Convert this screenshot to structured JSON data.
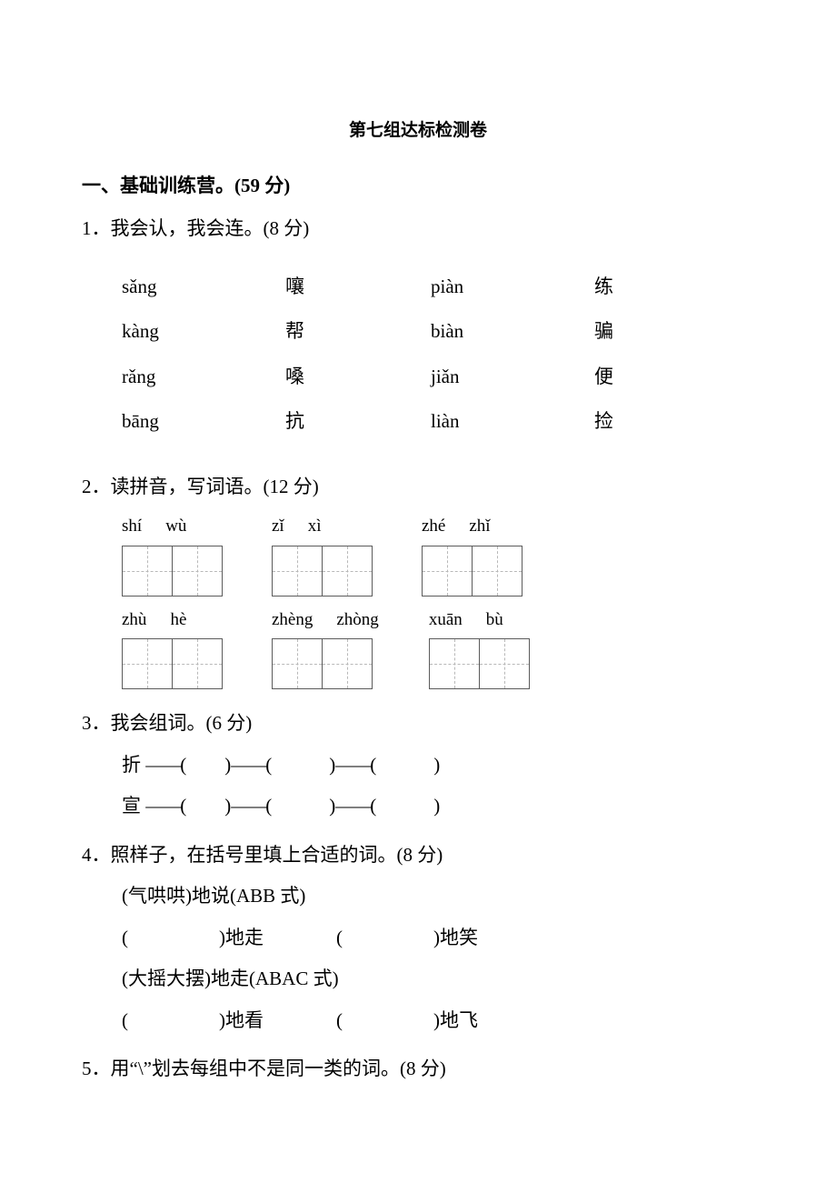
{
  "title": "第七组达标检测卷",
  "section1": {
    "heading": "一、基础训练营。(59 分)",
    "q1": {
      "prompt": "1．我会认，我会连。(8 分)",
      "left": [
        [
          "sǎng",
          "嚷"
        ],
        [
          "kàng",
          "帮"
        ],
        [
          "rǎng",
          "嗓"
        ],
        [
          "bāng",
          "抗"
        ]
      ],
      "right": [
        [
          "piàn",
          "练"
        ],
        [
          "biàn",
          "骗"
        ],
        [
          "jiǎn",
          "便"
        ],
        [
          "liàn",
          "捡"
        ]
      ]
    },
    "q2": {
      "prompt": "2．读拼音，写词语。(12 分)",
      "row1": [
        [
          "shí",
          "wù"
        ],
        [
          "zǐ",
          "xì"
        ],
        [
          "zhé",
          "zhǐ"
        ]
      ],
      "row2": [
        [
          "zhù",
          "hè"
        ],
        [
          "zhèng",
          "zhòng"
        ],
        [
          "xuān",
          "bù"
        ]
      ]
    },
    "q3": {
      "prompt": "3．我会组词。(6 分)",
      "chains": [
        "折",
        "宣"
      ]
    },
    "q4": {
      "prompt": "4．照样子，在括号里填上合适的词。(8 分)",
      "ex1_label": "(气哄哄)地说(ABB 式)",
      "ex1_blanks": [
        "地走",
        "地笑"
      ],
      "ex2_label": "(大摇大摆)地走(ABAC 式)",
      "ex2_blanks": [
        "地看",
        "地飞"
      ]
    },
    "q5": {
      "prompt": "5．用“\\”划去每组中不是同一类的词。(8 分)"
    }
  }
}
